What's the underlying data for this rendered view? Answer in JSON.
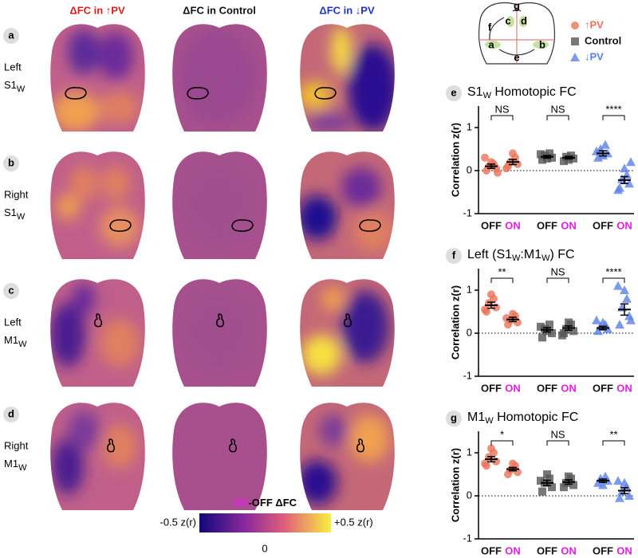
{
  "figure": {
    "column_titles": [
      "ΔFC in ↑PV",
      "ΔFC in Control",
      "ΔFC in ↓PV"
    ],
    "rows": [
      {
        "letter": "a",
        "side": "Left",
        "region": [
          "S1",
          "W"
        ]
      },
      {
        "letter": "b",
        "side": "Right",
        "region": [
          "S1",
          "W"
        ]
      },
      {
        "letter": "c",
        "side": "Left",
        "region": [
          "M1",
          "W"
        ]
      },
      {
        "letter": "d",
        "side": "Right",
        "region": [
          "M1",
          "W"
        ]
      }
    ],
    "colorbar": {
      "title": [
        "ON",
        "-OFF ΔFC"
      ],
      "min_label": "-0.5 z(r)",
      "mid_label": "0",
      "max_label": "+0.5 z(r)"
    },
    "schematic_labels": [
      "a",
      "b",
      "c",
      "d",
      "e",
      "f",
      "g"
    ],
    "legend": [
      {
        "name": "↑PV",
        "color": "#e8735a",
        "marker": "circle"
      },
      {
        "name": "Control",
        "color": "#555555",
        "marker": "square"
      },
      {
        "name": "↓PV",
        "color": "#5b7fe6",
        "marker": "triangle"
      }
    ]
  },
  "chart_data": [
    {
      "type": "scatter",
      "letter": "e",
      "title": [
        "S1",
        "W",
        " Homotopic FC"
      ],
      "ylabel": "Correlation z(r)",
      "ylim": [
        -1,
        1.5
      ],
      "yticks": [
        -1,
        0,
        1
      ],
      "categories": [
        "OFF",
        "ON",
        "OFF",
        "ON",
        "OFF",
        "ON"
      ],
      "significance": [
        "NS",
        "NS",
        "****"
      ],
      "series": [
        {
          "color": "#e8735a",
          "marker": "circle",
          "off": [
            0.0,
            0.05,
            0.1,
            0.15,
            0.2,
            0.3,
            -0.05
          ],
          "on": [
            0.1,
            0.15,
            0.2,
            0.3,
            0.4,
            0.05
          ],
          "mean": [
            0.1,
            0.2
          ],
          "sem": [
            0.05,
            0.06
          ]
        },
        {
          "color": "#555555",
          "marker": "square",
          "off": [
            0.25,
            0.3,
            0.35,
            0.4,
            0.28,
            0.38
          ],
          "on": [
            0.22,
            0.28,
            0.32,
            0.35,
            0.25
          ],
          "mean": [
            0.32,
            0.3
          ],
          "sem": [
            0.03,
            0.03
          ]
        },
        {
          "color": "#5b7fe6",
          "marker": "triangle",
          "off": [
            0.3,
            0.4,
            0.5,
            0.6,
            0.35,
            0.45
          ],
          "on": [
            -0.4,
            -0.3,
            -0.2,
            -0.1,
            0.05,
            -0.45,
            0.2
          ],
          "mean": [
            0.4,
            -0.22
          ],
          "sem": [
            0.06,
            0.08
          ]
        }
      ]
    },
    {
      "type": "scatter",
      "letter": "f",
      "title": [
        "Left (S1",
        "W",
        ":M1",
        "W",
        ") FC"
      ],
      "ylabel": "Correlation z(r)",
      "ylim": [
        -1,
        1.5
      ],
      "yticks": [
        -1,
        0,
        1
      ],
      "categories": [
        "OFF",
        "ON",
        "OFF",
        "ON",
        "OFF",
        "ON"
      ],
      "significance": [
        "**",
        "NS",
        "****"
      ],
      "series": [
        {
          "color": "#e8735a",
          "marker": "circle",
          "off": [
            0.5,
            0.6,
            0.7,
            0.8,
            0.9,
            0.55
          ],
          "on": [
            0.2,
            0.25,
            0.3,
            0.4,
            0.45,
            0.35
          ],
          "mean": [
            0.65,
            0.32
          ],
          "sem": [
            0.07,
            0.05
          ]
        },
        {
          "color": "#555555",
          "marker": "square",
          "off": [
            -0.1,
            0.0,
            0.1,
            0.2,
            0.05,
            0.15
          ],
          "on": [
            0.0,
            0.05,
            0.1,
            0.2,
            0.25,
            -0.05
          ],
          "mean": [
            0.08,
            0.12
          ],
          "sem": [
            0.05,
            0.05
          ]
        },
        {
          "color": "#5b7fe6",
          "marker": "triangle",
          "off": [
            0.05,
            0.1,
            0.15,
            0.2,
            0.25,
            0.3
          ],
          "on": [
            0.2,
            0.4,
            0.6,
            0.8,
            1.0,
            1.1,
            0.3
          ],
          "mean": [
            0.12,
            0.55
          ],
          "sem": [
            0.04,
            0.13
          ]
        }
      ]
    },
    {
      "type": "scatter",
      "letter": "g",
      "title": [
        "M1",
        "W",
        "  Homotopic FC"
      ],
      "ylabel": "Correlation z(r)",
      "ylim": [
        -1,
        1.5
      ],
      "yticks": [
        -1,
        0,
        1
      ],
      "categories": [
        "OFF",
        "ON",
        "OFF",
        "ON",
        "OFF",
        "ON"
      ],
      "significance": [
        "*",
        "NS",
        "**"
      ],
      "series": [
        {
          "color": "#e8735a",
          "marker": "circle",
          "off": [
            0.7,
            0.8,
            0.9,
            1.0,
            1.1,
            0.75
          ],
          "on": [
            0.5,
            0.55,
            0.6,
            0.7,
            0.75
          ],
          "mean": [
            0.85,
            0.62
          ],
          "sem": [
            0.06,
            0.04
          ]
        },
        {
          "color": "#555555",
          "marker": "square",
          "off": [
            0.1,
            0.2,
            0.3,
            0.4,
            0.5,
            0.35
          ],
          "on": [
            0.2,
            0.25,
            0.3,
            0.4,
            0.45
          ],
          "mean": [
            0.3,
            0.32
          ],
          "sem": [
            0.06,
            0.05
          ]
        },
        {
          "color": "#5b7fe6",
          "marker": "triangle",
          "off": [
            0.3,
            0.35,
            0.4,
            0.45,
            0.25
          ],
          "on": [
            -0.05,
            0.0,
            0.1,
            0.2,
            0.3,
            0.35
          ],
          "mean": [
            0.35,
            0.12
          ],
          "sem": [
            0.04,
            0.07
          ]
        }
      ]
    }
  ]
}
